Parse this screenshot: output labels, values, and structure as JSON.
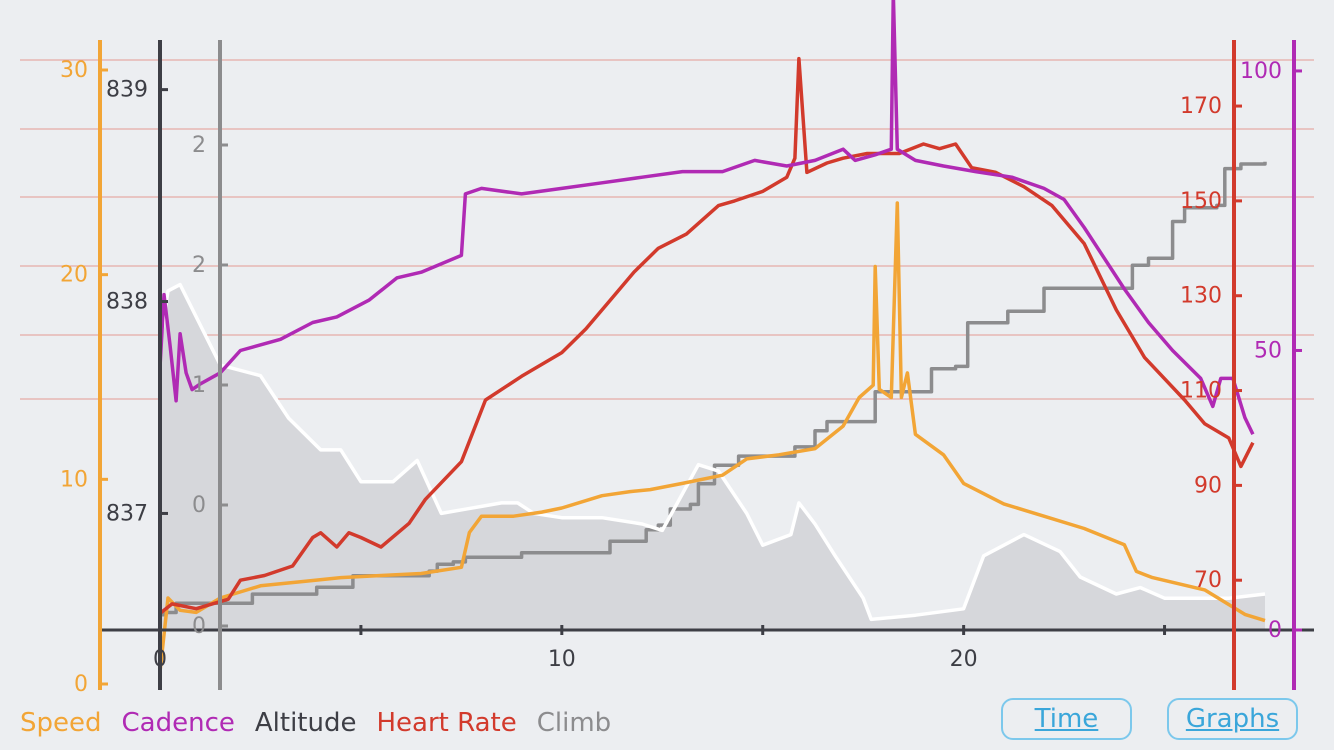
{
  "colors": {
    "speed": "#f2a536",
    "cadence": "#b02ab4",
    "altitude": "#3d3e45",
    "heart_rate": "#d23a2c",
    "climb": "#8c8c8e",
    "climb_fill": "#d6d7db",
    "climb_outline": "#ffffff",
    "hr_grid": "#e39a93",
    "background": "#eceef1"
  },
  "legend": [
    "Speed",
    "Cadence",
    "Altitude",
    "Heart Rate",
    "Climb"
  ],
  "buttons": {
    "time": "Time",
    "graphs": "Graphs"
  },
  "chart_data": {
    "type": "line",
    "x": {
      "range": [
        0,
        27.5
      ],
      "ticks": [
        0,
        10,
        20
      ],
      "tick_labels": [
        "0",
        "10",
        "20"
      ],
      "minor_ticks": [
        5,
        15,
        25
      ]
    },
    "axes": {
      "speed": {
        "range": [
          0,
          30
        ],
        "ticks": [
          0,
          10,
          20,
          30
        ],
        "tick_labels": [
          "0",
          "10",
          "20",
          "30"
        ]
      },
      "altitude": {
        "range": [
          836.45,
          839.22
        ],
        "ticks": [
          837,
          838,
          839
        ],
        "tick_labels": [
          "837",
          "838",
          "839"
        ]
      },
      "climb": {
        "tick_labels": [
          "0",
          "0",
          "1",
          "2",
          "2"
        ]
      },
      "heart_rate": {
        "range": [
          59.5,
          183.3
        ],
        "ticks": [
          70,
          90,
          110,
          130,
          150,
          170
        ],
        "tick_labels": [
          "70",
          "90",
          "110",
          "130",
          "150",
          "170"
        ],
        "grid": true
      },
      "cadence": {
        "range": [
          0,
          105
        ],
        "ticks": [
          0,
          50,
          100
        ],
        "tick_labels": [
          "0",
          "50",
          "100"
        ]
      }
    },
    "series": [
      {
        "name": "Climb",
        "axis": "climb",
        "points": [
          [
            0,
            0.4
          ],
          [
            0.1,
            0.5
          ],
          [
            0.4,
            0.9
          ],
          [
            1.5,
            0.9
          ],
          [
            2.3,
            1.3
          ],
          [
            2.7,
            1.3
          ],
          [
            3.5,
            1.3
          ],
          [
            3.9,
            1.6
          ],
          [
            4.8,
            2.1
          ],
          [
            5.4,
            2.1
          ],
          [
            6.7,
            2.3
          ],
          [
            6.9,
            2.6
          ],
          [
            7.3,
            2.7
          ],
          [
            7.6,
            2.9
          ],
          [
            8.8,
            2.9
          ],
          [
            9.0,
            3.1
          ],
          [
            10.6,
            3.1
          ],
          [
            11.2,
            3.6
          ],
          [
            12.1,
            4.1
          ],
          [
            12.4,
            4.3
          ],
          [
            12.7,
            5.0
          ],
          [
            13.2,
            5.2
          ],
          [
            13.4,
            6.1
          ],
          [
            13.8,
            6.9
          ],
          [
            14.4,
            7.3
          ],
          [
            15.6,
            7.3
          ],
          [
            15.8,
            7.7
          ],
          [
            16.3,
            8.4
          ],
          [
            16.6,
            8.8
          ],
          [
            17.5,
            8.8
          ],
          [
            17.8,
            10.1
          ],
          [
            18.7,
            10.1
          ],
          [
            19.2,
            11.1
          ],
          [
            19.8,
            11.2
          ],
          [
            20.1,
            13.1
          ],
          [
            21.1,
            13.6
          ],
          [
            22.0,
            14.6
          ],
          [
            23.5,
            14.6
          ],
          [
            24.2,
            15.6
          ],
          [
            24.6,
            15.9
          ],
          [
            25.2,
            17.5
          ],
          [
            25.5,
            18.1
          ],
          [
            26.3,
            18.2
          ],
          [
            26.5,
            19.8
          ],
          [
            26.9,
            20.0
          ],
          [
            27.5,
            20.1
          ]
        ]
      },
      {
        "name": "Altitude",
        "axis": "altitude",
        "points": [
          [
            0,
            837.8
          ],
          [
            0.2,
            838.05
          ],
          [
            0.5,
            838.08
          ],
          [
            1.5,
            837.7
          ],
          [
            2.5,
            837.65
          ],
          [
            3.2,
            837.45
          ],
          [
            4.0,
            837.3
          ],
          [
            4.5,
            837.3
          ],
          [
            5.0,
            837.15
          ],
          [
            5.8,
            837.15
          ],
          [
            6.4,
            837.25
          ],
          [
            7.0,
            837.0
          ],
          [
            7.6,
            837.02
          ],
          [
            8.5,
            837.05
          ],
          [
            8.9,
            837.05
          ],
          [
            9.3,
            837.0
          ],
          [
            10.0,
            836.98
          ],
          [
            11.0,
            836.98
          ],
          [
            12.0,
            836.95
          ],
          [
            12.5,
            836.92
          ],
          [
            13.4,
            837.23
          ],
          [
            13.9,
            837.2
          ],
          [
            14.6,
            837.0
          ],
          [
            15.0,
            836.85
          ],
          [
            15.7,
            836.9
          ],
          [
            15.9,
            837.05
          ],
          [
            16.3,
            836.95
          ],
          [
            16.8,
            836.8
          ],
          [
            17.5,
            836.6
          ],
          [
            17.7,
            836.5
          ],
          [
            18.8,
            836.52
          ],
          [
            20.0,
            836.55
          ],
          [
            20.5,
            836.8
          ],
          [
            21.5,
            836.9
          ],
          [
            22.4,
            836.82
          ],
          [
            22.9,
            836.7
          ],
          [
            23.8,
            836.62
          ],
          [
            24.4,
            836.65
          ],
          [
            25.0,
            836.6
          ],
          [
            25.9,
            836.6
          ],
          [
            26.6,
            836.6
          ],
          [
            27.5,
            836.62
          ]
        ]
      },
      {
        "name": "Speed",
        "axis": "speed",
        "points": [
          [
            0,
            0.6
          ],
          [
            0.2,
            4.2
          ],
          [
            0.5,
            3.6
          ],
          [
            0.9,
            3.5
          ],
          [
            1.5,
            4.2
          ],
          [
            2.5,
            4.8
          ],
          [
            3.5,
            5.0
          ],
          [
            4.5,
            5.2
          ],
          [
            5.5,
            5.3
          ],
          [
            6.5,
            5.4
          ],
          [
            7.5,
            5.7
          ],
          [
            7.7,
            7.4
          ],
          [
            8.0,
            8.2
          ],
          [
            8.8,
            8.2
          ],
          [
            9.5,
            8.4
          ],
          [
            10.0,
            8.6
          ],
          [
            11.0,
            9.2
          ],
          [
            11.7,
            9.4
          ],
          [
            12.2,
            9.5
          ],
          [
            13.0,
            9.8
          ],
          [
            14.0,
            10.2
          ],
          [
            14.6,
            11.0
          ],
          [
            15.4,
            11.2
          ],
          [
            16.3,
            11.5
          ],
          [
            17.0,
            12.6
          ],
          [
            17.4,
            14.0
          ],
          [
            17.75,
            14.6
          ],
          [
            17.8,
            20.4
          ],
          [
            17.9,
            14.4
          ],
          [
            18.2,
            14.0
          ],
          [
            18.35,
            23.5
          ],
          [
            18.45,
            14.0
          ],
          [
            18.6,
            15.2
          ],
          [
            18.8,
            12.2
          ],
          [
            19.5,
            11.2
          ],
          [
            20.0,
            9.8
          ],
          [
            21.0,
            8.8
          ],
          [
            22.0,
            8.2
          ],
          [
            23.0,
            7.6
          ],
          [
            24.0,
            6.8
          ],
          [
            24.3,
            5.5
          ],
          [
            24.7,
            5.2
          ],
          [
            26.0,
            4.6
          ],
          [
            27.0,
            3.4
          ],
          [
            27.5,
            3.1
          ]
        ]
      },
      {
        "name": "Heart Rate",
        "axis": "heart_rate",
        "points": [
          [
            0,
            63
          ],
          [
            0.3,
            65
          ],
          [
            0.9,
            64
          ],
          [
            1.7,
            66
          ],
          [
            2.0,
            70
          ],
          [
            2.6,
            71
          ],
          [
            3.3,
            73
          ],
          [
            3.8,
            79
          ],
          [
            4.0,
            80
          ],
          [
            4.4,
            77
          ],
          [
            4.7,
            80
          ],
          [
            5.0,
            79
          ],
          [
            5.5,
            77
          ],
          [
            6.2,
            82
          ],
          [
            6.6,
            87
          ],
          [
            7.5,
            95
          ],
          [
            8.1,
            108
          ],
          [
            9.0,
            113
          ],
          [
            10.0,
            118
          ],
          [
            10.6,
            123
          ],
          [
            11.2,
            129
          ],
          [
            11.8,
            135
          ],
          [
            12.4,
            140
          ],
          [
            13.1,
            143
          ],
          [
            13.9,
            149
          ],
          [
            14.3,
            150
          ],
          [
            15.0,
            152
          ],
          [
            15.6,
            155
          ],
          [
            15.8,
            159
          ],
          [
            15.9,
            180
          ],
          [
            16.1,
            156
          ],
          [
            16.6,
            158
          ],
          [
            17.0,
            159
          ],
          [
            17.6,
            160
          ],
          [
            18.4,
            160
          ],
          [
            19.0,
            162
          ],
          [
            19.4,
            161
          ],
          [
            19.8,
            162
          ],
          [
            20.2,
            157
          ],
          [
            20.8,
            156
          ],
          [
            21.5,
            153
          ],
          [
            22.2,
            149
          ],
          [
            23.0,
            141
          ],
          [
            23.8,
            127
          ],
          [
            24.5,
            117
          ],
          [
            25.5,
            108
          ],
          [
            26.0,
            103
          ],
          [
            26.6,
            100
          ],
          [
            26.9,
            94
          ],
          [
            27.2,
            99
          ]
        ]
      },
      {
        "name": "Cadence",
        "axis": "cadence",
        "points": [
          [
            0,
            47
          ],
          [
            0.1,
            60
          ],
          [
            0.25,
            51
          ],
          [
            0.4,
            41
          ],
          [
            0.5,
            53
          ],
          [
            0.65,
            46
          ],
          [
            0.8,
            43
          ],
          [
            1.0,
            44
          ],
          [
            1.5,
            46
          ],
          [
            2.0,
            50
          ],
          [
            3.0,
            52
          ],
          [
            3.8,
            55
          ],
          [
            4.4,
            56
          ],
          [
            5.2,
            59
          ],
          [
            5.9,
            63
          ],
          [
            6.5,
            64
          ],
          [
            7.5,
            67
          ],
          [
            7.6,
            78
          ],
          [
            8.0,
            79
          ],
          [
            9.0,
            78
          ],
          [
            10.0,
            79
          ],
          [
            11.0,
            80
          ],
          [
            12.0,
            81
          ],
          [
            13.0,
            82
          ],
          [
            14.0,
            82
          ],
          [
            14.8,
            84
          ],
          [
            15.6,
            83
          ],
          [
            16.3,
            84
          ],
          [
            17.0,
            86
          ],
          [
            17.3,
            84
          ],
          [
            17.8,
            85
          ],
          [
            18.2,
            86
          ],
          [
            18.25,
            114
          ],
          [
            18.35,
            86
          ],
          [
            18.8,
            84
          ],
          [
            19.5,
            83
          ],
          [
            20.3,
            82
          ],
          [
            21.2,
            81
          ],
          [
            22.0,
            79
          ],
          [
            22.5,
            77
          ],
          [
            23.0,
            72
          ],
          [
            24.0,
            61
          ],
          [
            24.6,
            55
          ],
          [
            25.2,
            50
          ],
          [
            25.9,
            45
          ],
          [
            26.2,
            40
          ],
          [
            26.4,
            45
          ],
          [
            26.7,
            45
          ],
          [
            27.0,
            38
          ],
          [
            27.2,
            35
          ]
        ]
      }
    ]
  }
}
